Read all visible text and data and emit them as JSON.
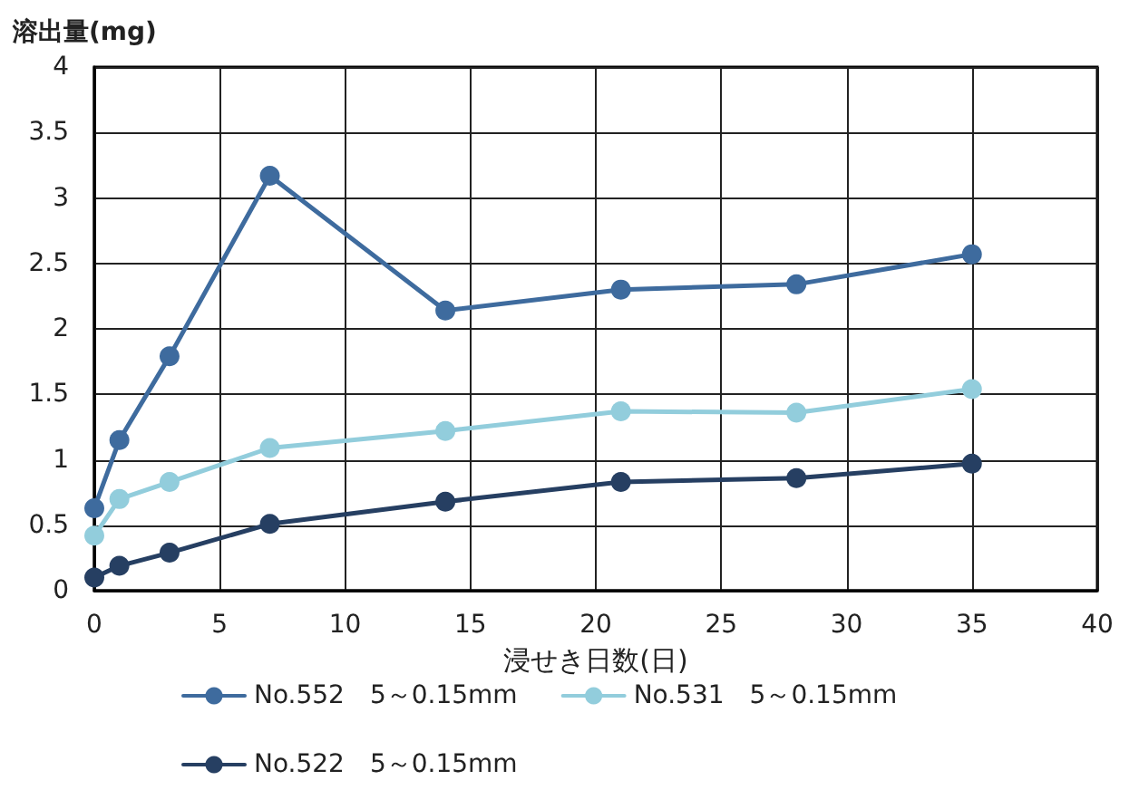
{
  "chart_data": {
    "type": "line",
    "ylabel": "溶出量(mg)",
    "xlabel": "浸せき日数(日)",
    "x": [
      0,
      1,
      3,
      7,
      14,
      21,
      28,
      35
    ],
    "series": [
      {
        "name": "No.552　5～0.15mm",
        "color": "#3e6b9e",
        "values": [
          0.63,
          1.15,
          1.79,
          3.17,
          2.14,
          2.3,
          2.34,
          2.57
        ]
      },
      {
        "name": "No.531　5～0.15mm",
        "color": "#92cddc",
        "values": [
          0.42,
          0.7,
          0.83,
          1.09,
          1.22,
          1.37,
          1.36,
          1.54
        ]
      },
      {
        "name": "No.522　5～0.15mm",
        "color": "#263f62",
        "values": [
          0.1,
          0.19,
          0.29,
          0.51,
          0.68,
          0.83,
          0.86,
          0.97
        ]
      }
    ],
    "xlim": [
      0,
      40
    ],
    "xticks": [
      0,
      5,
      10,
      15,
      20,
      25,
      30,
      35,
      40
    ],
    "ylim": [
      0,
      4
    ],
    "yticks": [
      0,
      0.5,
      1,
      1.5,
      2,
      2.5,
      3,
      3.5,
      4
    ],
    "grid": true,
    "legend": "bottom",
    "marker": "circle",
    "line_style": "solid"
  }
}
